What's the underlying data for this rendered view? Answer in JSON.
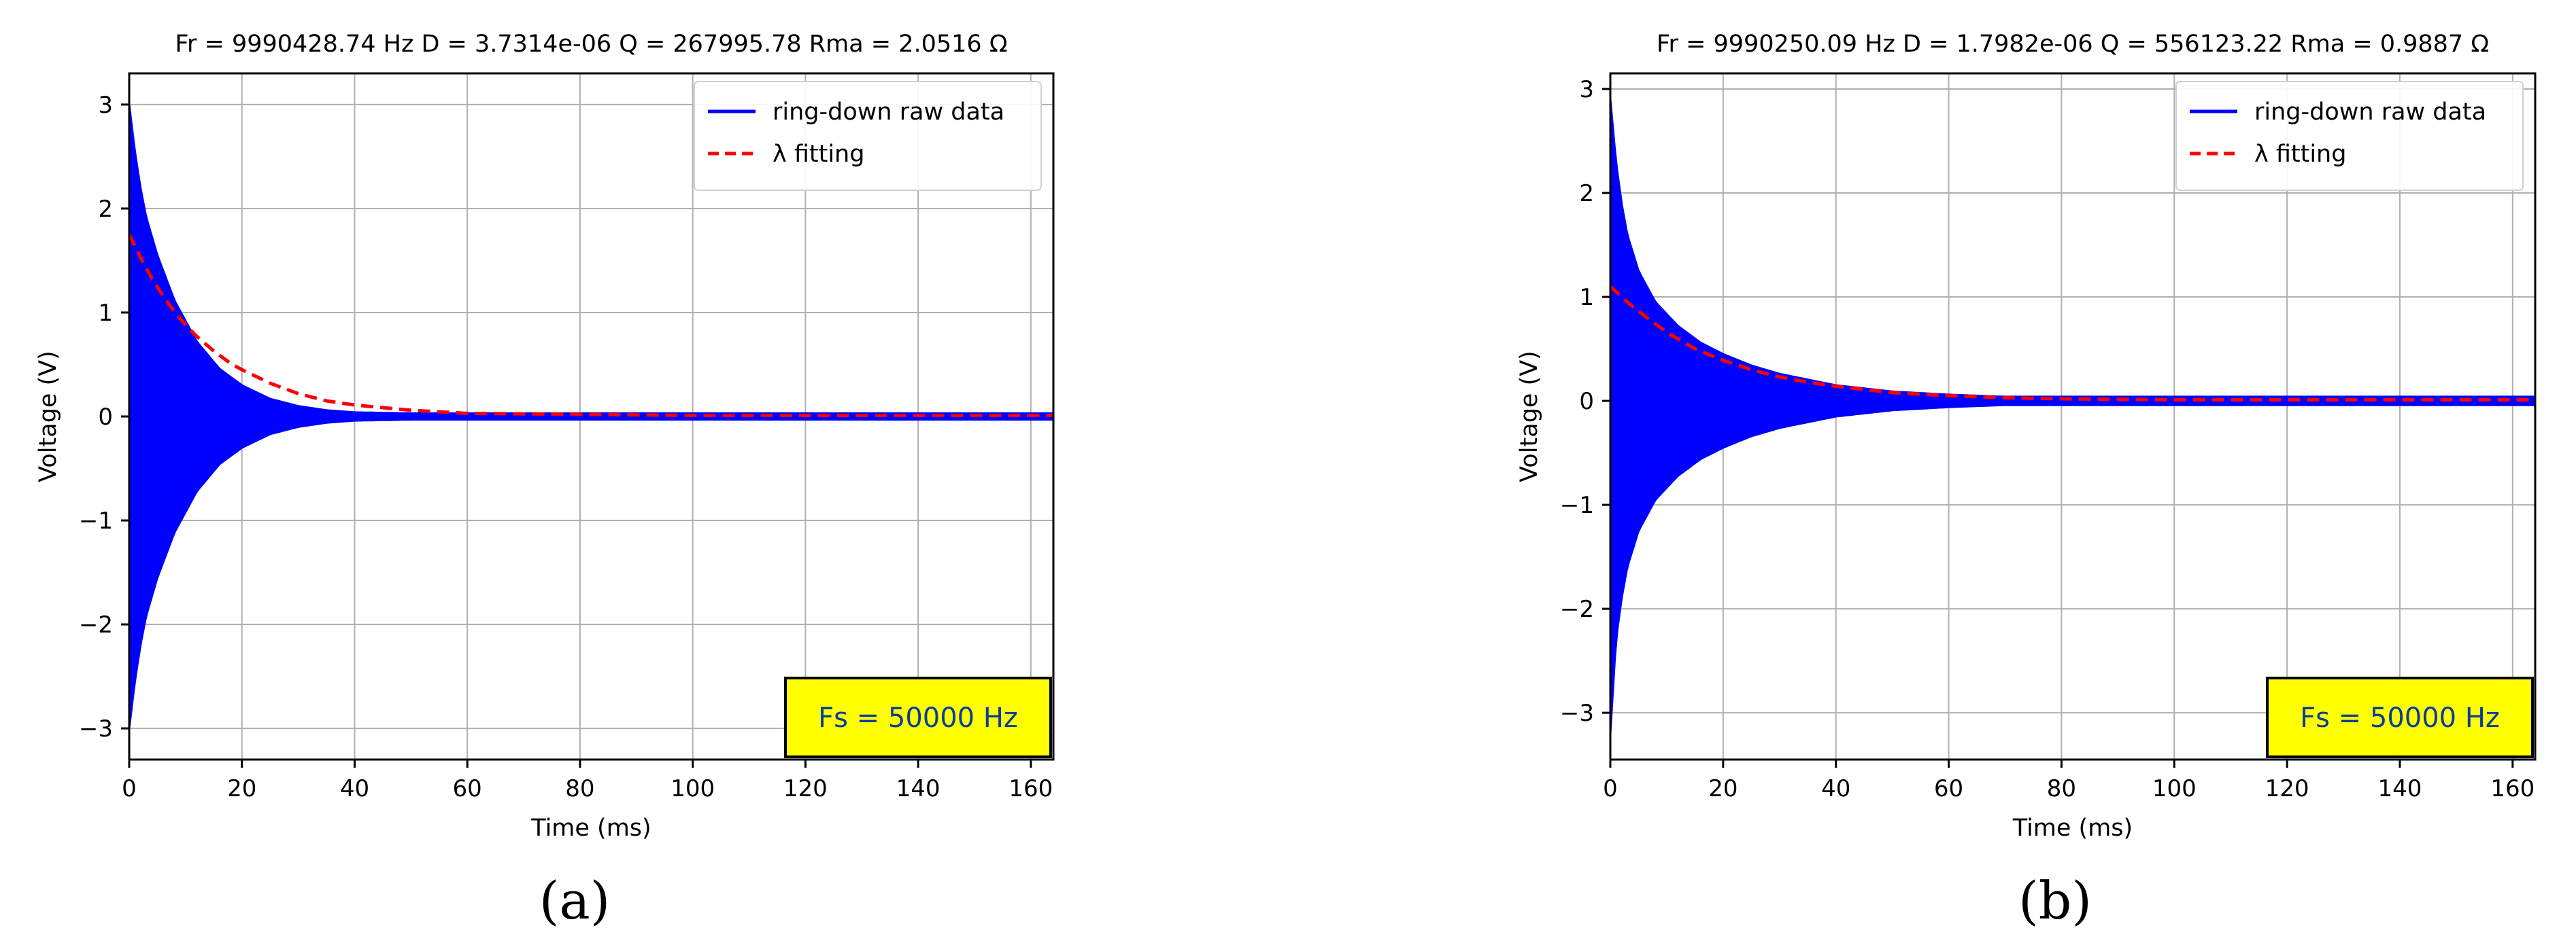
{
  "figure": {
    "panels": [
      {
        "caption": "(a)"
      },
      {
        "caption": "(b)"
      }
    ]
  },
  "colors": {
    "raw": "#0000ff",
    "fit": "#ff0000",
    "grid": "#b0b0b0",
    "fs_box": "#ffff00",
    "fs_text": "#0a3d9c"
  },
  "chart_data": [
    {
      "type": "line",
      "title": "Fr = 9990428.74 Hz   D = 3.7314e-06   Q = 267995.78   Rma = 2.0516 Ω",
      "xlabel": "Time (ms)",
      "ylabel": "Voltage (V)",
      "xlim": [
        0,
        164
      ],
      "ylim": [
        -3.3,
        3.3
      ],
      "xticks": [
        0,
        20,
        40,
        60,
        80,
        100,
        120,
        140,
        160
      ],
      "yticks": [
        -3,
        -2,
        -1,
        0,
        1,
        2,
        3
      ],
      "grid": true,
      "legend": {
        "position": "top-right",
        "entries": [
          "ring-down raw data",
          "λ fitting"
        ]
      },
      "annotation": "Fs =  50000 Hz",
      "series": [
        {
          "name": "ring-down raw data",
          "style": "solid",
          "x": [
            0,
            1,
            2,
            3,
            5,
            8,
            12,
            16,
            20,
            25,
            30,
            35,
            40,
            50,
            60,
            80,
            100,
            120,
            140,
            164
          ],
          "upper": [
            3.0,
            2.55,
            2.2,
            1.92,
            1.55,
            1.12,
            0.72,
            0.46,
            0.3,
            0.17,
            0.1,
            0.06,
            0.04,
            0.03,
            0.03,
            0.03,
            0.03,
            0.03,
            0.03,
            0.03
          ],
          "lower": [
            -3.0,
            -2.55,
            -2.2,
            -1.92,
            -1.55,
            -1.12,
            -0.72,
            -0.46,
            -0.3,
            -0.17,
            -0.1,
            -0.06,
            -0.04,
            -0.03,
            -0.03,
            -0.03,
            -0.03,
            -0.03,
            -0.03,
            -0.03
          ]
        },
        {
          "name": "λ fitting",
          "style": "dashed",
          "x": [
            0,
            2,
            4,
            6,
            8,
            10,
            12,
            15,
            18,
            20,
            25,
            30,
            35,
            40,
            50,
            60,
            80,
            100,
            120,
            140,
            164
          ],
          "values": [
            1.75,
            1.53,
            1.33,
            1.16,
            1.01,
            0.88,
            0.77,
            0.63,
            0.51,
            0.45,
            0.32,
            0.22,
            0.15,
            0.11,
            0.06,
            0.03,
            0.02,
            0.01,
            0.01,
            0.01,
            0.01
          ]
        }
      ]
    },
    {
      "type": "line",
      "title": "Fr = 9990250.09 Hz   D = 1.7982e-06   Q = 556123.22   Rma = 0.9887 Ω",
      "xlabel": "Time (ms)",
      "ylabel": "Voltage (V)",
      "xlim": [
        0,
        164
      ],
      "ylim": [
        -3.45,
        3.15
      ],
      "xticks": [
        0,
        20,
        40,
        60,
        80,
        100,
        120,
        140,
        160
      ],
      "yticks": [
        -3,
        -2,
        -1,
        0,
        1,
        2,
        3
      ],
      "grid": true,
      "legend": {
        "position": "top-right",
        "entries": [
          "ring-down raw data",
          "λ fitting"
        ]
      },
      "annotation": "Fs =  50000 Hz",
      "series": [
        {
          "name": "ring-down raw data",
          "style": "solid",
          "x": [
            0,
            1,
            2,
            3,
            5,
            8,
            12,
            16,
            20,
            25,
            30,
            40,
            50,
            60,
            70,
            80,
            100,
            120,
            140,
            164
          ],
          "upper": [
            2.9,
            2.3,
            1.9,
            1.6,
            1.25,
            0.95,
            0.72,
            0.56,
            0.45,
            0.34,
            0.26,
            0.15,
            0.09,
            0.06,
            0.04,
            0.04,
            0.04,
            0.04,
            0.04,
            0.04
          ],
          "lower": [
            -3.2,
            -2.3,
            -1.9,
            -1.6,
            -1.25,
            -0.95,
            -0.72,
            -0.56,
            -0.45,
            -0.34,
            -0.26,
            -0.15,
            -0.09,
            -0.06,
            -0.04,
            -0.04,
            -0.04,
            -0.04,
            -0.04,
            -0.04
          ]
        },
        {
          "name": "λ fitting",
          "style": "dashed",
          "x": [
            0,
            3,
            6,
            10,
            15,
            20,
            25,
            30,
            35,
            40,
            50,
            60,
            70,
            80,
            100,
            120,
            140,
            164
          ],
          "values": [
            1.1,
            0.95,
            0.82,
            0.66,
            0.5,
            0.39,
            0.3,
            0.23,
            0.18,
            0.14,
            0.08,
            0.05,
            0.03,
            0.02,
            0.01,
            0.01,
            0.01,
            0.01
          ]
        }
      ]
    }
  ]
}
